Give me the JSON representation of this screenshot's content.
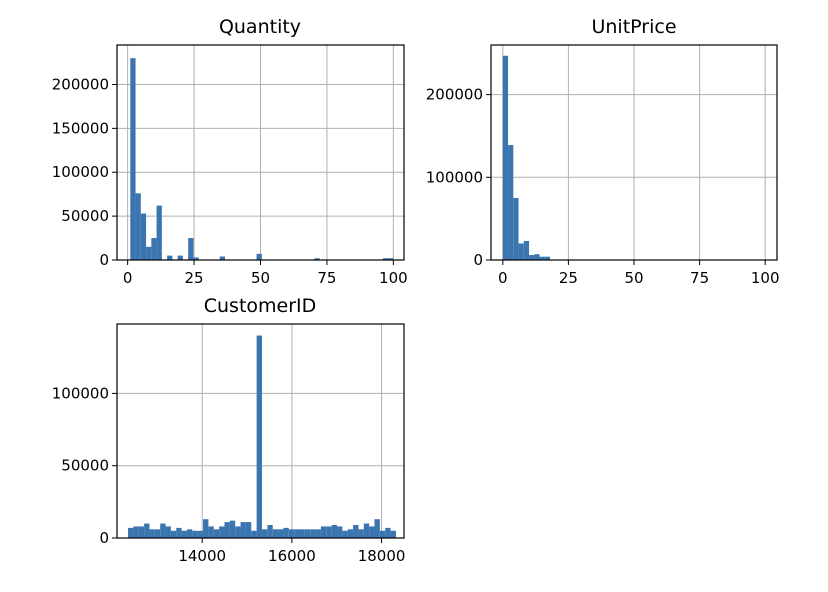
{
  "bar_color": "#3b75af",
  "chart_data": [
    {
      "type": "bar",
      "title": "Quantity",
      "xlim": [
        -4,
        104
      ],
      "ylim": [
        0,
        245000
      ],
      "grid": true,
      "xticks": [
        0,
        25,
        50,
        75,
        100
      ],
      "xtick_labels": [
        "0",
        "25",
        "50",
        "75",
        "100"
      ],
      "yticks": [
        0,
        50000,
        100000,
        150000,
        200000
      ],
      "ytick_labels": [
        "0",
        "50000",
        "100000",
        "150000",
        "200000"
      ],
      "bin_edges": [
        1,
        2.98,
        4.96,
        6.94,
        8.92,
        10.9,
        12.88,
        14.86,
        16.84,
        18.82,
        20.8,
        22.78,
        24.76,
        26.74,
        28.72,
        30.7,
        32.68,
        34.66,
        36.64,
        38.62,
        40.6,
        42.58,
        44.56,
        46.54,
        48.52,
        50.5,
        52.48,
        54.46,
        56.44,
        58.42,
        60.4,
        62.38,
        64.36,
        66.34,
        68.32,
        70.3,
        72.28,
        74.26,
        76.24,
        78.22,
        80.2,
        82.18,
        84.16,
        86.14,
        88.12,
        90.1,
        92.08,
        94.06,
        96.04,
        98.02,
        100
      ],
      "values": [
        230000,
        76000,
        53000,
        15000,
        25000,
        62000,
        0,
        5000,
        0,
        5000,
        0,
        25000,
        3000,
        0,
        0,
        0,
        0,
        4000,
        0,
        0,
        0,
        0,
        0,
        0,
        7000,
        0,
        0,
        0,
        0,
        0,
        0,
        0,
        0,
        0,
        0,
        2000,
        0,
        0,
        0,
        0,
        0,
        0,
        0,
        0,
        0,
        0,
        0,
        0,
        2000,
        2000
      ]
    },
    {
      "type": "bar",
      "title": "UnitPrice",
      "xlim": [
        -4.5,
        104.5
      ],
      "ylim": [
        0,
        260000
      ],
      "grid": true,
      "xticks": [
        0,
        25,
        50,
        75,
        100
      ],
      "xtick_labels": [
        "0",
        "25",
        "50",
        "75",
        "100"
      ],
      "yticks": [
        0,
        100000,
        200000
      ],
      "ytick_labels": [
        "0",
        "100000",
        "200000"
      ],
      "bin_edges": [
        0,
        2,
        4,
        6,
        8,
        10,
        12,
        14,
        16,
        18,
        20,
        22,
        24,
        26,
        28,
        30,
        32,
        34,
        36,
        38,
        40,
        42,
        44,
        46,
        48,
        50,
        52,
        54,
        56,
        58,
        60,
        62,
        64,
        66,
        68,
        70,
        72,
        74,
        76,
        78,
        80,
        82,
        84,
        86,
        88,
        90,
        92,
        94,
        96,
        98,
        100
      ],
      "values": [
        247000,
        139000,
        75000,
        20000,
        23000,
        6000,
        7000,
        4000,
        4000,
        0,
        0,
        0,
        0,
        0,
        0,
        0,
        0,
        0,
        0,
        0,
        0,
        0,
        0,
        0,
        0,
        0,
        0,
        0,
        0,
        0,
        0,
        0,
        0,
        0,
        0,
        0,
        0,
        0,
        0,
        0,
        0,
        0,
        0,
        0,
        0,
        0,
        0,
        0,
        0,
        0
      ]
    },
    {
      "type": "bar",
      "title": "CustomerID",
      "xlim": [
        12100,
        18500
      ],
      "ylim": [
        0,
        148000
      ],
      "grid": true,
      "xticks": [
        14000,
        16000,
        18000
      ],
      "xtick_labels": [
        "14000",
        "16000",
        "18000"
      ],
      "yticks": [
        0,
        50000,
        100000
      ],
      "ytick_labels": [
        "0",
        "50000",
        "100000"
      ],
      "bin_edges": [
        12346,
        12465.48,
        12584.96,
        12704.44,
        12823.92,
        12943.4,
        13062.88,
        13182.36,
        13301.84,
        13421.32,
        13540.8,
        13660.28,
        13779.76,
        13899.24,
        14018.72,
        14138.2,
        14257.68,
        14377.16,
        14496.64,
        14616.12,
        14735.6,
        14855.08,
        14974.56,
        15094.04,
        15213.52,
        15333,
        15452.48,
        15571.96,
        15691.44,
        15810.92,
        15930.4,
        16049.88,
        16169.36,
        16288.84,
        16408.32,
        16527.8,
        16647.28,
        16766.76,
        16886.24,
        17005.72,
        17125.2,
        17244.68,
        17364.16,
        17483.64,
        17603.12,
        17722.6,
        17842.08,
        17961.56,
        18081.04,
        18200.52,
        18320
      ],
      "values": [
        7000,
        8000,
        8000,
        10000,
        6000,
        6000,
        10000,
        8000,
        5000,
        7000,
        5000,
        6000,
        5000,
        5000,
        13000,
        8000,
        6000,
        8000,
        11000,
        12000,
        8000,
        11000,
        11000,
        5000,
        140000,
        6000,
        9000,
        6000,
        6000,
        7000,
        6000,
        6000,
        6000,
        6000,
        6000,
        6000,
        8000,
        8000,
        9000,
        8000,
        5000,
        6000,
        9000,
        6000,
        10000,
        8000,
        13000,
        5000,
        7000,
        5000
      ]
    }
  ]
}
